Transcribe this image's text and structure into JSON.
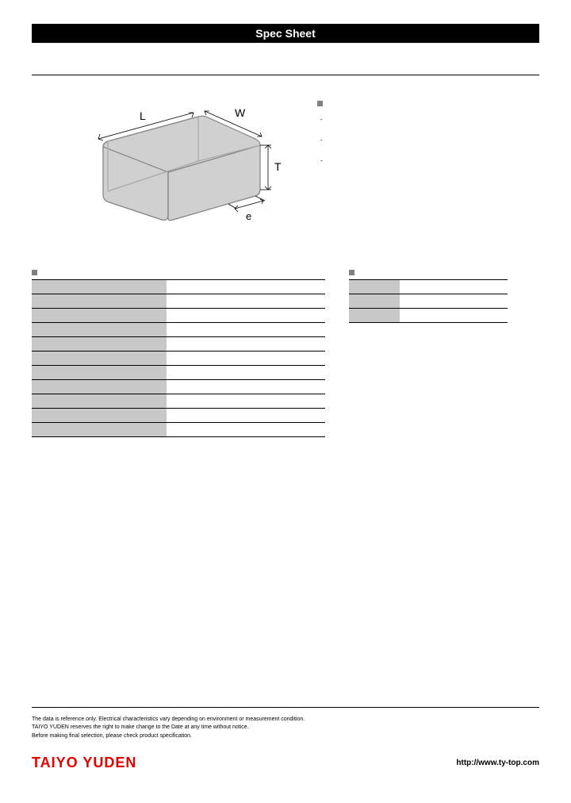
{
  "title": "Spec Sheet",
  "diagram": {
    "labels": {
      "L": "L",
      "W": "W",
      "T": "T",
      "e": "e"
    },
    "fill": "#d0d0d0",
    "stroke": "#808080"
  },
  "features": {
    "heading": "",
    "items": [
      "",
      "",
      ""
    ]
  },
  "spec_table": {
    "heading": "",
    "rows": [
      {
        "label": "",
        "value": ""
      },
      {
        "label": "",
        "value": ""
      },
      {
        "label": "",
        "value": ""
      },
      {
        "label": "",
        "value": ""
      },
      {
        "label": "",
        "value": ""
      },
      {
        "label": "",
        "value": ""
      },
      {
        "label": "",
        "value": ""
      },
      {
        "label": "",
        "value": ""
      },
      {
        "label": "",
        "value": ""
      },
      {
        "label": "",
        "value": ""
      },
      {
        "label": "",
        "value": ""
      }
    ]
  },
  "pack_table": {
    "heading": "",
    "rows": [
      {
        "label": "",
        "value": ""
      },
      {
        "label": "",
        "value": ""
      },
      {
        "label": "",
        "value": ""
      }
    ]
  },
  "footnotes": [
    "The data is reference only. Electrical characteristics vary depending on environment or measurement condition.",
    "TAIYO YUDEN reserves the right to make change to the Date at any time without notice.",
    "Before making final selection, please check product specification."
  ],
  "logo_text": "TAIYO YUDEN",
  "url": "http://www.ty-top.com",
  "colors": {
    "logo": "#e60000",
    "bullet": "#808080",
    "cell_bg": "#c8c8c8"
  }
}
